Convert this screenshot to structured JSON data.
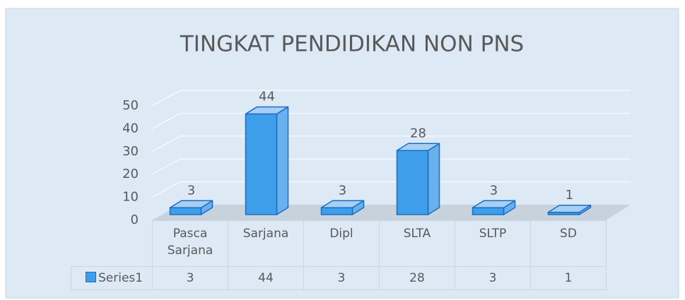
{
  "chart_data": {
    "type": "bar3d",
    "title": "TINGKAT PENDIDIKAN NON PNS",
    "categories": [
      "Pasca Sarjana",
      "Sarjana",
      "Dipl",
      "SLTA",
      "SLTP",
      "SD"
    ],
    "series": [
      {
        "name": "Series1",
        "color": "#3f9ee9",
        "values": [
          3,
          44,
          3,
          28,
          3,
          1
        ]
      }
    ],
    "ylim": [
      0,
      50
    ],
    "yticks": [
      0,
      10,
      20,
      30,
      40,
      50
    ],
    "grid": true,
    "data_table": true
  }
}
